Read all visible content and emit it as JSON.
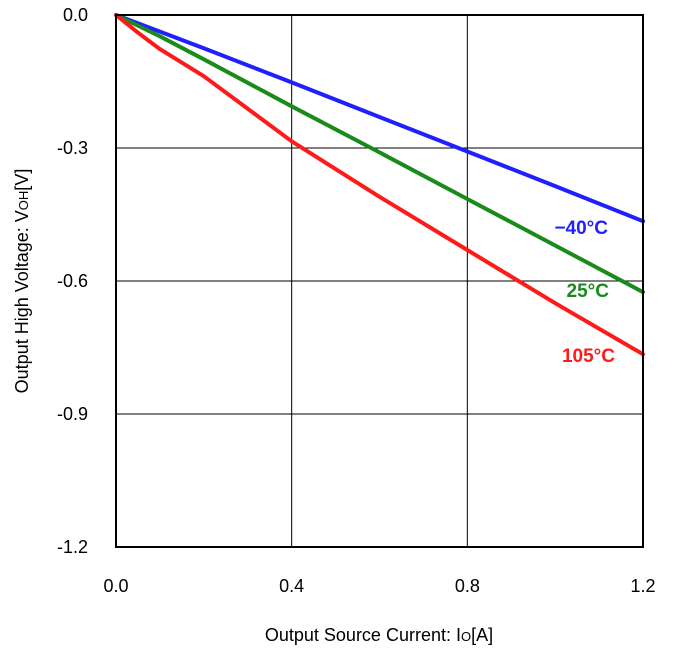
{
  "chart_data": {
    "type": "line",
    "title": "",
    "xlabel": "Output Source Current: ",
    "xlabel_symbol": "I",
    "xlabel_sub": "O",
    "xlabel_unit": "[A]",
    "ylabel": "Output High Voltage: ",
    "ylabel_symbol": "V",
    "ylabel_sub": "OH",
    "ylabel_unit": "[V]",
    "xlim": [
      0.0,
      1.2
    ],
    "ylim": [
      -1.2,
      0.0
    ],
    "xticks": [
      0.0,
      0.4,
      0.8,
      1.2
    ],
    "xtick_labels": [
      "0.0",
      "0.4",
      "0.8",
      "1.2"
    ],
    "yticks": [
      0.0,
      -0.3,
      -0.6,
      -0.9,
      -1.2
    ],
    "ytick_labels": [
      "0.0",
      "-0.3",
      "-0.6",
      "-0.9",
      "-1.2"
    ],
    "grid": true,
    "legend": "inline labels",
    "series": [
      {
        "name": "−40°C",
        "color": "#1f1fff",
        "x": [
          0.0,
          0.2,
          0.4,
          0.6,
          0.8,
          1.0,
          1.2
        ],
        "y": [
          0.0,
          -0.075,
          -0.152,
          -0.23,
          -0.308,
          -0.386,
          -0.465
        ]
      },
      {
        "name": "25°C",
        "color": "#1a8a1a",
        "x": [
          0.0,
          0.1,
          0.2,
          0.4,
          0.6,
          0.8,
          1.0,
          1.2
        ],
        "y": [
          0.0,
          -0.048,
          -0.1,
          -0.206,
          -0.31,
          -0.415,
          -0.52,
          -0.625
        ]
      },
      {
        "name": "105°C",
        "color": "#ff1a1a",
        "x": [
          0.0,
          0.05,
          0.1,
          0.2,
          0.4,
          0.6,
          0.8,
          1.0,
          1.2
        ],
        "y": [
          0.0,
          -0.04,
          -0.077,
          -0.138,
          -0.285,
          -0.41,
          -0.53,
          -0.65,
          -0.765
        ]
      }
    ]
  }
}
